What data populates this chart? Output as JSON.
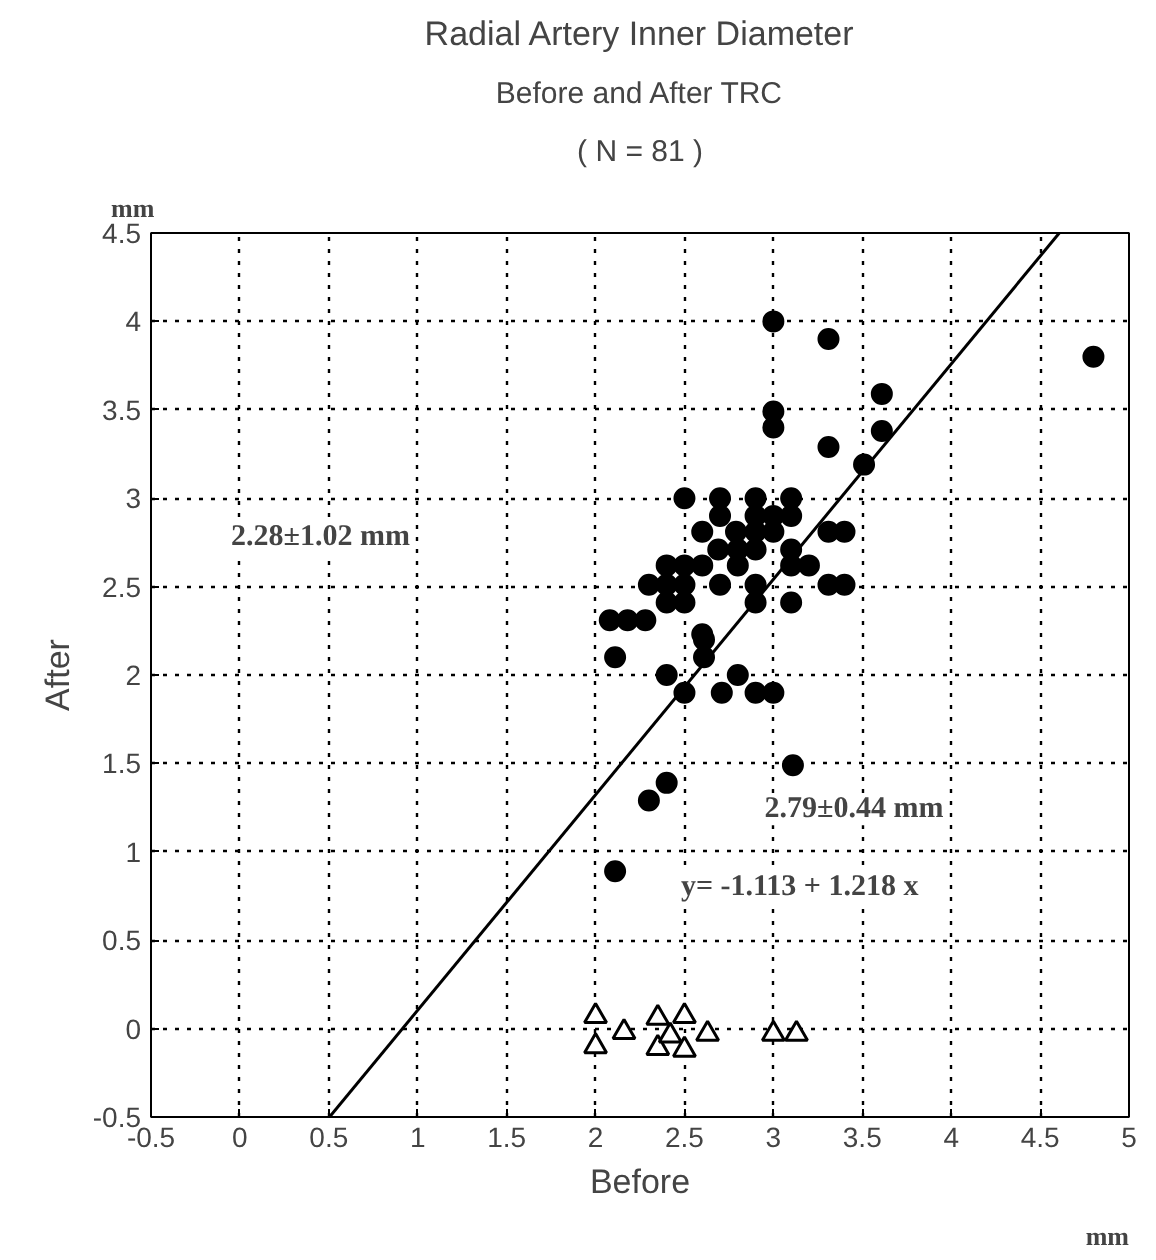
{
  "chart_data": {
    "type": "scatter",
    "title": "Radial Artery Inner Diameter",
    "subtitle": "Before and After TRC",
    "xlabel": "Before",
    "ylabel": "After",
    "annotations": [
      "( N = 81 )",
      "mm",
      "mm",
      "2.28±1.02 mm",
      "2.79±0.44 mm",
      "y= -1.113 + 1.218 x"
    ],
    "xlim": [
      -0.5,
      5
    ],
    "ylim": [
      -0.5,
      4.5
    ],
    "xticks": [
      -0.5,
      0,
      0.5,
      1,
      1.5,
      2,
      2.5,
      3,
      3.5,
      4,
      4.5,
      5
    ],
    "yticks": [
      -0.5,
      0,
      0.5,
      1,
      1.5,
      2,
      2.5,
      3,
      3.5,
      4,
      4.5
    ],
    "grid": true,
    "line_style": "dotted",
    "series": [
      {
        "color": "#000000",
        "marker": "circle",
        "x": [
          3.0,
          3.31,
          4.8,
          3.61,
          3.0,
          3.0,
          3.61,
          3.31,
          3.51,
          2.5,
          2.7,
          2.9,
          3.1,
          2.6,
          2.7,
          2.9,
          3.0,
          3.1,
          2.79,
          2.9,
          3.0,
          3.31,
          3.4,
          2.69,
          2.8,
          2.9,
          3.1,
          2.8,
          3.1,
          3.2,
          2.4,
          2.5,
          2.6,
          2.3,
          2.4,
          2.5,
          2.7,
          2.9,
          3.31,
          3.4,
          2.4,
          2.5,
          2.9,
          3.1,
          2.08,
          2.18,
          2.28,
          2.6,
          2.11,
          2.61,
          2.61,
          2.4,
          2.8,
          2.5,
          2.71,
          2.9,
          3.0,
          3.11,
          2.3,
          2.4,
          2.11
        ],
        "values": [
          4.0,
          3.9,
          3.8,
          3.59,
          3.49,
          3.4,
          3.38,
          3.29,
          3.19,
          3.0,
          3.0,
          3.0,
          3.0,
          2.81,
          2.9,
          2.9,
          2.9,
          2.9,
          2.81,
          2.81,
          2.81,
          2.81,
          2.81,
          2.71,
          2.71,
          2.71,
          2.71,
          2.62,
          2.62,
          2.62,
          2.62,
          2.62,
          2.62,
          2.51,
          2.51,
          2.51,
          2.51,
          2.51,
          2.51,
          2.51,
          2.41,
          2.41,
          2.41,
          2.41,
          2.31,
          2.31,
          2.31,
          2.23,
          2.1,
          2.2,
          2.1,
          2.0,
          2.0,
          1.9,
          1.9,
          1.9,
          1.9,
          1.49,
          1.29,
          1.39,
          0.89
        ]
      },
      {
        "color": "#000000",
        "marker": "triangle",
        "x": [
          2.0,
          2.0,
          2.16,
          2.35,
          2.35,
          2.5,
          2.5,
          2.42,
          2.63,
          3.0,
          3.13
        ],
        "values": [
          0.07,
          -0.1,
          -0.02,
          0.06,
          -0.11,
          0.07,
          -0.12,
          -0.04,
          -0.03,
          -0.03,
          -0.03
        ]
      },
      {
        "type": "line",
        "color": "#000000",
        "line_style": "solid",
        "x": [
          0.504,
          4.608
        ],
        "values": [
          -0.5,
          4.5
        ]
      }
    ]
  }
}
